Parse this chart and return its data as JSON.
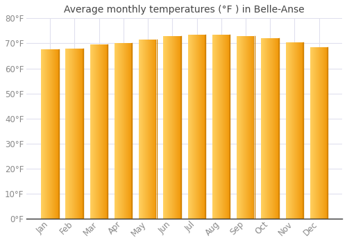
{
  "title": "Average monthly temperatures (°F ) in Belle-Anse",
  "months": [
    "Jan",
    "Feb",
    "Mar",
    "Apr",
    "May",
    "Jun",
    "Jul",
    "Aug",
    "Sep",
    "Oct",
    "Nov",
    "Dec"
  ],
  "values": [
    67.5,
    68.0,
    69.5,
    70.0,
    71.5,
    73.0,
    73.5,
    73.5,
    73.0,
    72.0,
    70.5,
    68.5
  ],
  "ylim": [
    0,
    80
  ],
  "yticks": [
    0,
    10,
    20,
    30,
    40,
    50,
    60,
    70,
    80
  ],
  "ytick_labels": [
    "0°F",
    "10°F",
    "20°F",
    "30°F",
    "40°F",
    "50°F",
    "60°F",
    "70°F",
    "80°F"
  ],
  "bar_color_left": "#FFD060",
  "bar_color_right": "#F0980A",
  "bar_color_edge": "#D08000",
  "background_color": "#FFFFFF",
  "plot_bg_color": "#FFFFFF",
  "grid_color": "#E0E0EE",
  "title_fontsize": 10,
  "tick_fontsize": 8.5,
  "title_color": "#444444",
  "tick_color": "#888888",
  "bar_width": 0.72,
  "n_gradient_steps": 50
}
